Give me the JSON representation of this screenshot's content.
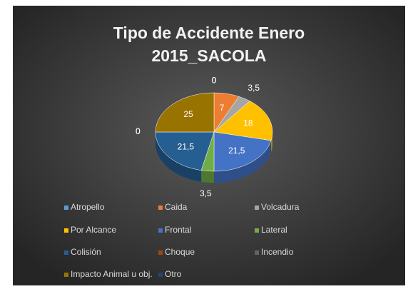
{
  "chart_data": {
    "type": "pie",
    "title": "Tipo de Accidente Enero 2015_SACOLA",
    "categories": [
      "Atropello",
      "Caida",
      "Volcadura",
      "Por Alcance",
      "Frontal",
      "Lateral",
      "Colisión",
      "Choque",
      "Incendio",
      "Impacto Animal u obj.",
      "Otro"
    ],
    "values": [
      0,
      7,
      3.5,
      18,
      21.5,
      3.5,
      21.5,
      0,
      0,
      25,
      0
    ],
    "value_labels": [
      "0",
      "7",
      "3,5",
      "18",
      "21,5",
      "3,5",
      "21,5",
      "0",
      "0",
      "25",
      "0"
    ],
    "colors": [
      "#5b9bd5",
      "#ed7d31",
      "#a5a5a5",
      "#ffc000",
      "#4472c4",
      "#70ad47",
      "#255e91",
      "#9e480e",
      "#636363",
      "#997300",
      "#264478"
    ],
    "legend": "bottom"
  }
}
